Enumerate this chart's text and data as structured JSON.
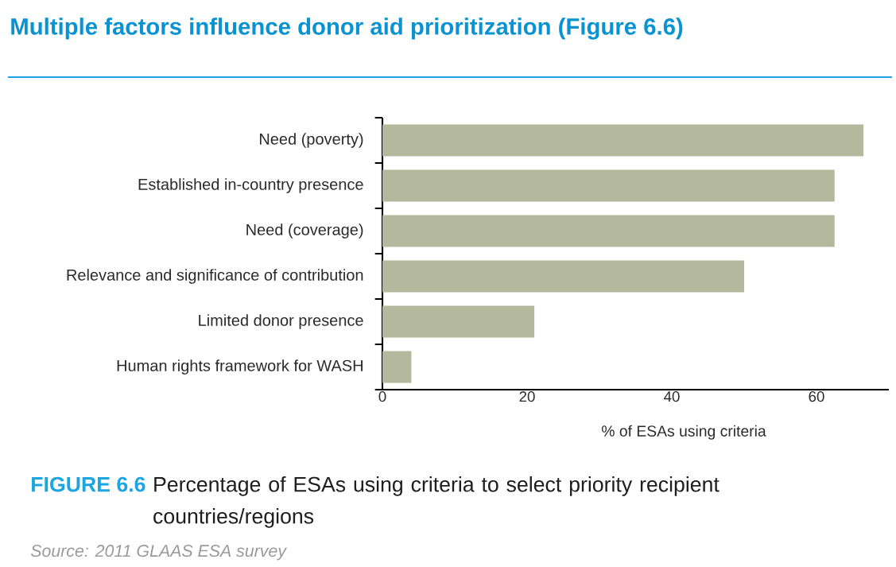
{
  "chart_data": {
    "type": "bar",
    "orientation": "horizontal",
    "title": "Multiple factors influence donor aid prioritization (Figure 6.6)",
    "xlabel": "% of ESAs using criteria",
    "categories": [
      "Need (poverty)",
      "Established in-country presence",
      "Need (coverage)",
      "Relevance and significance of contribution",
      "Limited donor presence",
      "Human rights framework for WASH"
    ],
    "values": [
      66.5,
      62.5,
      62.5,
      50,
      21,
      4
    ],
    "color": "#b4b89c",
    "xlim": [
      0,
      70
    ],
    "xticks": [
      0,
      20,
      40,
      60
    ],
    "annotations": [
      "FIGURE 6.6",
      "Percentage of ESAs using criteria to select priority recipient countries/regions",
      "Source: 2011 GLAAS ESA survey"
    ]
  }
}
